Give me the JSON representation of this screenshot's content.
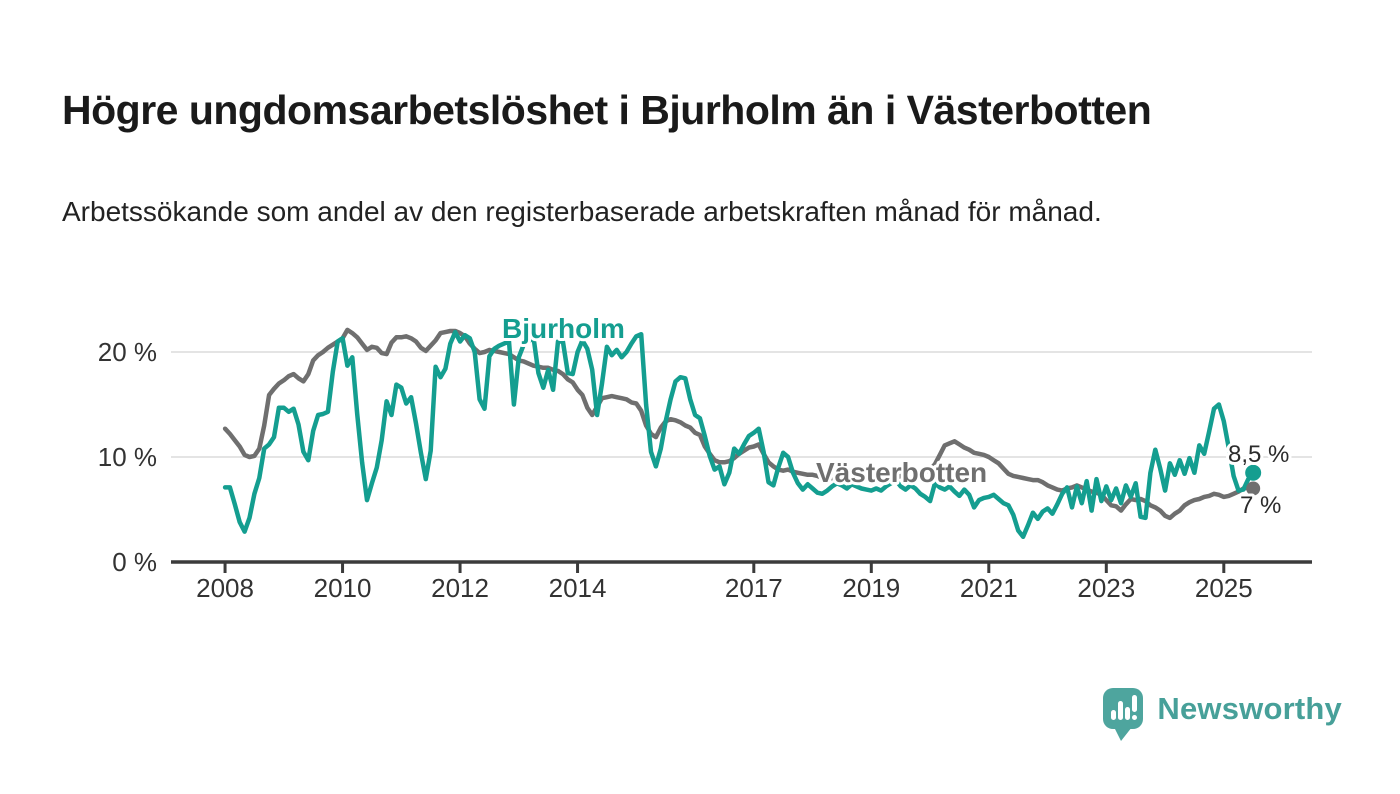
{
  "header": {
    "title": "Högre ungdomsarbetslöshet i Bjurholm än i Västerbotten",
    "subtitle": "Arbetssökande som andel av den registerbaserade arbetskraften månad för månad."
  },
  "footer": {
    "brand": "Newsworthy"
  },
  "colors": {
    "bjurholm": "#149e90",
    "vasterbotten": "#6f6f6f",
    "axis": "#3b3b3b",
    "grid": "#dcdcdc",
    "tick_text": "#333333",
    "end_label_text": "#2b2b2b",
    "logo_teal": "#4ea59e"
  },
  "chart_data": {
    "type": "line",
    "title": "Högre ungdomsarbetslöshet i Bjurholm än i Västerbotten",
    "subtitle": "Arbetssökande som andel av den registerbaserade arbetskraften månad för månad.",
    "frequency": "monthly",
    "start": "2008-01",
    "end": "2025-07",
    "grid": "horizontal",
    "legend_position": "inline-labels",
    "x_axis": {
      "tick_years": [
        2008,
        2010,
        2012,
        2014,
        2017,
        2019,
        2021,
        2023,
        2025
      ],
      "range": [
        2007.08,
        2026.5
      ]
    },
    "y_axis": {
      "ticks": [
        0,
        10,
        20
      ],
      "tick_labels": [
        "0 %",
        "10 %",
        "20 %"
      ],
      "range": [
        0,
        25
      ],
      "unit": "%"
    },
    "series": [
      {
        "name": "Västerbotten",
        "color": "#6f6f6f",
        "end_label": "7 %",
        "end_value": 7.0,
        "values": [
          12.7,
          12.2,
          11.6,
          11.0,
          10.2,
          10.0,
          10.1,
          10.8,
          13.0,
          15.9,
          16.5,
          17.0,
          17.3,
          17.7,
          17.9,
          17.5,
          17.2,
          17.9,
          19.2,
          19.7,
          20.0,
          20.4,
          20.7,
          21.0,
          21.3,
          22.1,
          21.8,
          21.4,
          20.8,
          20.2,
          20.5,
          20.4,
          19.9,
          19.8,
          20.9,
          21.4,
          21.4,
          21.5,
          21.3,
          21.0,
          20.4,
          20.1,
          20.6,
          21.1,
          21.8,
          21.9,
          22.0,
          22.0,
          21.8,
          21.5,
          20.8,
          20.3,
          19.9,
          20.0,
          20.2,
          20.1,
          20.0,
          19.9,
          19.8,
          19.5,
          19.2,
          19.1,
          18.9,
          18.7,
          18.6,
          18.5,
          18.5,
          18.3,
          18.2,
          17.9,
          17.4,
          17.1,
          16.4,
          15.9,
          14.7,
          14.0,
          14.8,
          15.6,
          15.7,
          15.8,
          15.7,
          15.6,
          15.5,
          15.2,
          15.1,
          14.4,
          13.0,
          12.2,
          11.9,
          12.8,
          13.4,
          13.6,
          13.5,
          13.3,
          13.0,
          12.8,
          12.3,
          12.1,
          11.0,
          10.3,
          9.7,
          9.5,
          9.5,
          9.6,
          9.9,
          10.3,
          10.6,
          10.9,
          11.0,
          11.2,
          10.3,
          9.5,
          9.1,
          8.8,
          8.7,
          8.8,
          8.6,
          8.5,
          8.4,
          8.3,
          8.3,
          8.2,
          8.0,
          7.9,
          8.0,
          8.2,
          8.3,
          8.4,
          8.5,
          8.4,
          8.3,
          8.3,
          8.2,
          8.3,
          8.2,
          8.0,
          7.9,
          8.0,
          8.2,
          8.1,
          8.0,
          8.1,
          8.3,
          8.6,
          8.8,
          9.3,
          10.2,
          11.1,
          11.3,
          11.5,
          11.2,
          10.9,
          10.7,
          10.4,
          10.3,
          10.2,
          10.0,
          9.7,
          9.4,
          8.9,
          8.4,
          8.2,
          8.1,
          8.0,
          7.9,
          7.8,
          7.8,
          7.6,
          7.3,
          7.1,
          6.9,
          6.8,
          7.0,
          7.1,
          7.3,
          7.1,
          6.9,
          6.7,
          6.6,
          6.4,
          5.9,
          5.4,
          5.3,
          4.9,
          5.5,
          6.0,
          5.9,
          6.0,
          5.8,
          5.4,
          5.2,
          4.9,
          4.4,
          4.2,
          4.6,
          4.9,
          5.4,
          5.7,
          5.9,
          6.0,
          6.2,
          6.3,
          6.5,
          6.4,
          6.2,
          6.3,
          6.5,
          6.7,
          7.0,
          7.1,
          7.0
        ]
      },
      {
        "name": "Bjurholm",
        "color": "#149e90",
        "end_label": "8,5 %",
        "end_value": 8.5,
        "values": [
          7.1,
          7.1,
          5.5,
          3.8,
          2.9,
          4.2,
          6.5,
          8.0,
          10.8,
          11.2,
          11.9,
          14.7,
          14.7,
          14.3,
          14.6,
          13.1,
          10.5,
          9.7,
          12.5,
          14.0,
          14.1,
          14.3,
          18.1,
          21.0,
          21.3,
          18.7,
          19.5,
          14.1,
          9.5,
          5.9,
          7.5,
          9.0,
          11.6,
          15.3,
          14.0,
          16.9,
          16.6,
          15.1,
          15.7,
          13.2,
          10.4,
          7.9,
          10.6,
          18.6,
          17.6,
          18.4,
          20.8,
          21.9,
          21.0,
          21.6,
          21.3,
          20.0,
          15.5,
          14.6,
          19.6,
          20.3,
          20.6,
          20.8,
          21.0,
          15.0,
          19.5,
          20.7,
          21.0,
          21.4,
          18.0,
          16.6,
          18.3,
          16.4,
          21.0,
          21.0,
          18.0,
          17.9,
          20.0,
          21.1,
          20.3,
          18.3,
          14.0,
          17.0,
          20.5,
          19.7,
          20.2,
          19.5,
          20.0,
          20.8,
          21.5,
          21.7,
          15.0,
          10.5,
          9.1,
          10.8,
          13.4,
          15.5,
          17.2,
          17.6,
          17.5,
          15.5,
          14.0,
          13.7,
          12.0,
          10.1,
          8.8,
          9.1,
          7.4,
          8.5,
          10.8,
          10.3,
          11.2,
          12.0,
          12.3,
          12.7,
          10.5,
          7.6,
          7.3,
          9.0,
          10.4,
          10.0,
          8.5,
          7.5,
          6.9,
          7.4,
          7.0,
          6.6,
          6.5,
          6.8,
          7.2,
          7.5,
          7.3,
          7.0,
          7.4,
          7.2,
          7.0,
          6.9,
          6.8,
          7.0,
          6.8,
          7.2,
          7.5,
          7.8,
          7.2,
          6.9,
          7.3,
          7.0,
          6.5,
          6.2,
          5.8,
          7.5,
          7.1,
          6.9,
          7.2,
          6.7,
          6.3,
          6.9,
          6.4,
          5.2,
          5.9,
          6.1,
          6.2,
          6.4,
          6.0,
          5.6,
          5.4,
          4.5,
          3.0,
          2.4,
          3.5,
          4.7,
          4.1,
          4.8,
          5.1,
          4.6,
          5.5,
          6.5,
          7.1,
          5.2,
          7.2,
          5.6,
          7.7,
          4.9,
          7.9,
          5.8,
          7.2,
          5.9,
          7.0,
          5.6,
          7.3,
          6.2,
          7.5,
          4.3,
          4.2,
          8.5,
          10.7,
          8.9,
          6.8,
          9.4,
          8.3,
          9.7,
          8.4,
          9.9,
          8.5,
          11.1,
          10.3,
          12.4,
          14.6,
          15.0,
          13.4,
          10.9,
          8.2,
          6.8,
          6.9,
          7.9,
          8.5
        ]
      }
    ]
  }
}
